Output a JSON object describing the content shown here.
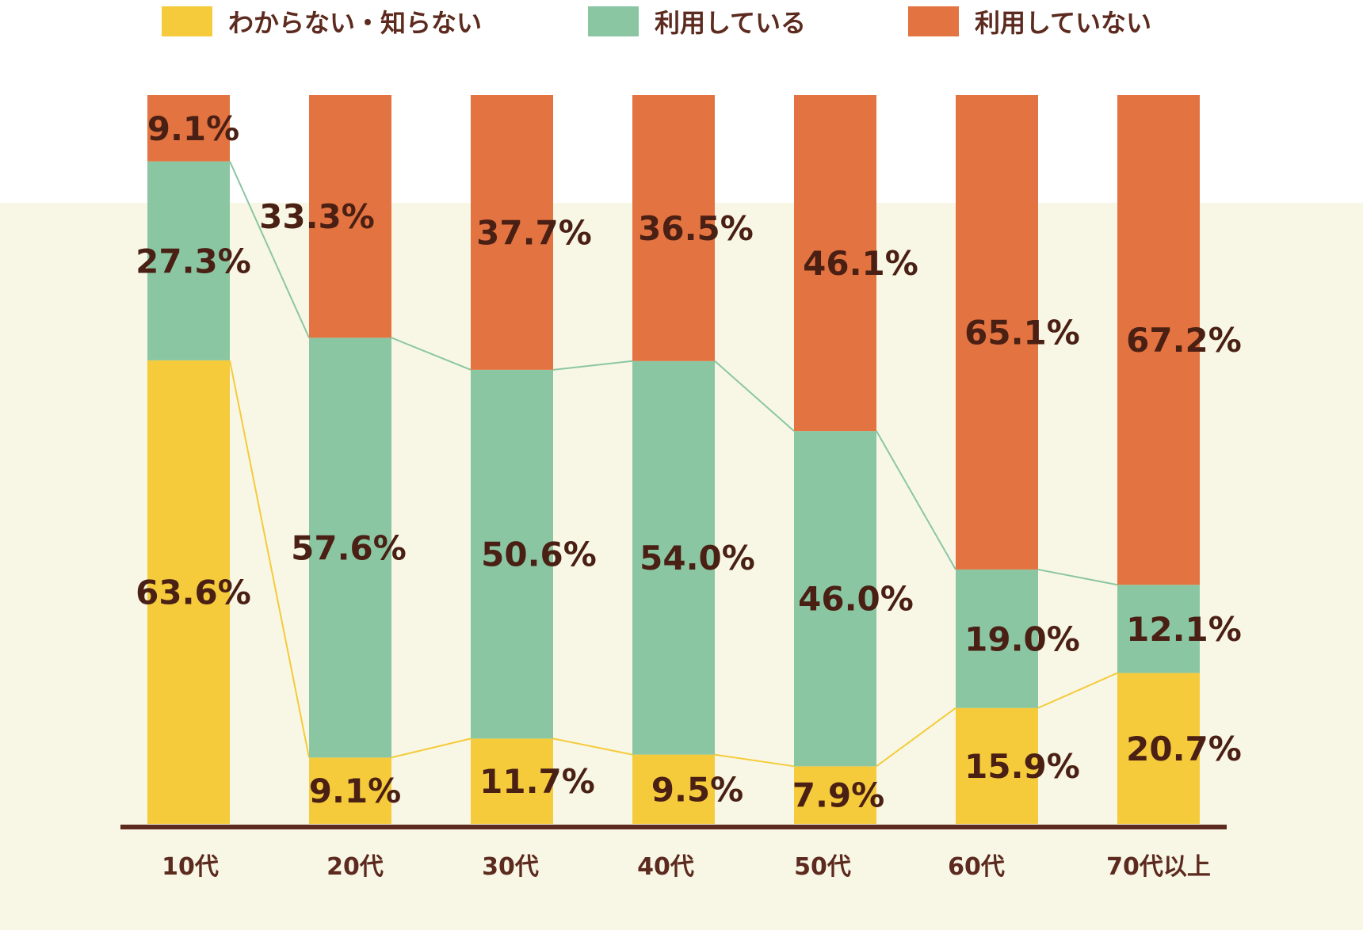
{
  "chart_data": {
    "type": "bar",
    "stacked": true,
    "categories": [
      "10代",
      "20代",
      "30代",
      "40代",
      "50代",
      "60代",
      "70代以上"
    ],
    "series": [
      {
        "name": "わからない・知らない",
        "color": "#f5cb3c",
        "values": [
          63.6,
          9.1,
          11.7,
          9.5,
          7.9,
          15.9,
          20.7
        ],
        "labels": [
          "63.6%",
          "9.1%",
          "11.7%",
          "9.5%",
          "7.9%",
          "15.9%",
          "20.7%"
        ]
      },
      {
        "name": "利用している",
        "color": "#8bc6a3",
        "values": [
          27.3,
          57.6,
          50.6,
          54.0,
          46.0,
          19.0,
          12.1
        ],
        "labels": [
          "27.3%",
          "57.6%",
          "50.6%",
          "54.0%",
          "46.0%",
          "19.0%",
          "12.1%"
        ]
      },
      {
        "name": "利用していない",
        "color": "#e37340",
        "values": [
          9.1,
          33.3,
          37.7,
          36.5,
          46.1,
          65.1,
          67.2
        ],
        "labels": [
          "9.1%",
          "33.3%",
          "37.7%",
          "36.5%",
          "46.1%",
          "65.1%",
          "67.2%"
        ]
      }
    ],
    "ylim": [
      0,
      100
    ],
    "legend": "top",
    "connector_lines": true
  },
  "colors": {
    "background_band": "#f8f7e5",
    "axis": "#5c2a1e",
    "label_text": "#4a1f14"
  }
}
